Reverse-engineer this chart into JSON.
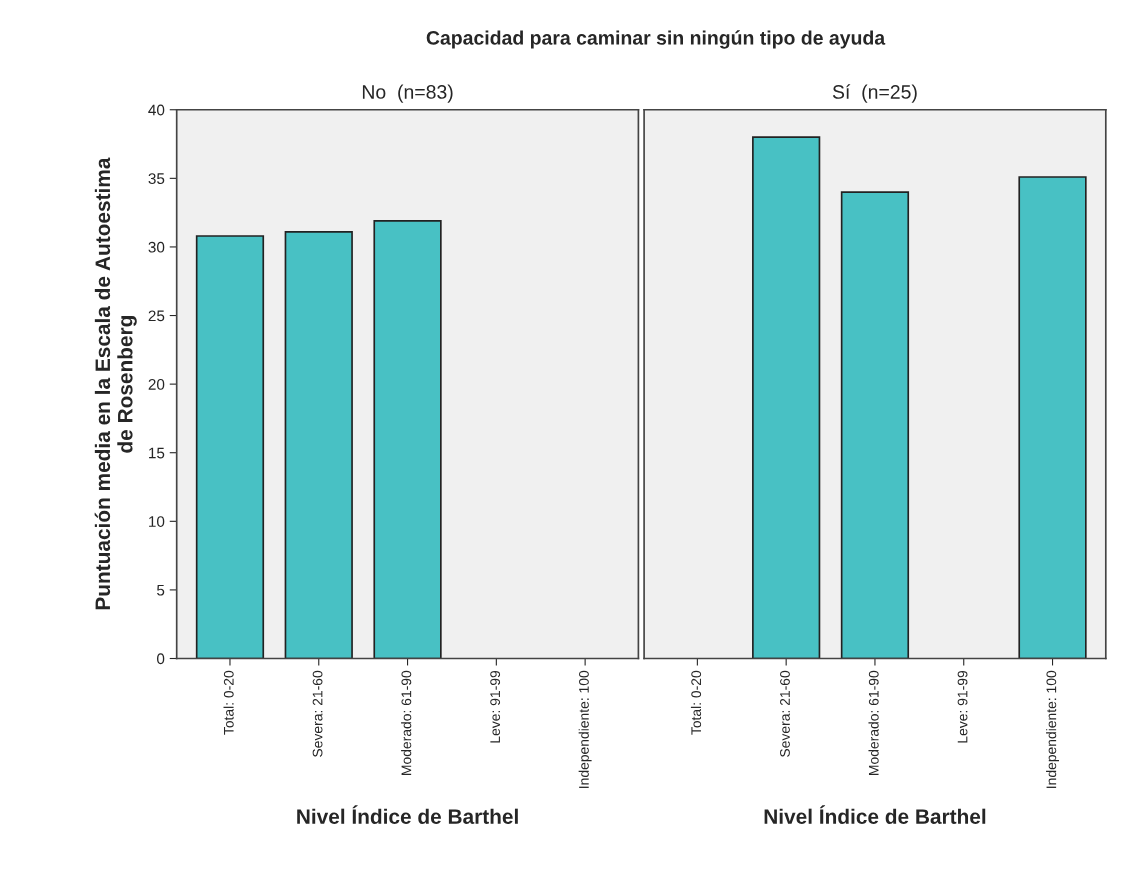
{
  "chart_data": [
    {
      "type": "bar",
      "title": "No  (n=83)",
      "annotations": [
        "Capacidad para caminar sin ningún tipo de ayuda"
      ],
      "xlabel": "Nivel Índice de Barthel",
      "ylabel": "Puntuación media en la Escala de Autoestima\nde Rosenberg",
      "categories": [
        "Total: 0-20",
        "Severa: 21-60",
        "Moderado: 61-90",
        "Leve: 91-99",
        "Independiente: 100"
      ],
      "values": [
        30.8,
        31.1,
        31.9,
        null,
        null
      ],
      "color": "#48c1c4",
      "ylim": [
        0,
        40
      ],
      "yticks": [
        0,
        5,
        10,
        15,
        20,
        25,
        30,
        35,
        40
      ],
      "grid": false,
      "legend": false
    },
    {
      "type": "bar",
      "title": "Sí  (n=25)",
      "xlabel": "Nivel Índice de Barthel",
      "categories": [
        "Total: 0-20",
        "Severa: 21-60",
        "Moderado: 61-90",
        "Leve: 91-99",
        "Independiente: 100"
      ],
      "values": [
        null,
        38.0,
        34.0,
        null,
        35.1
      ],
      "color": "#48c1c4",
      "ylim": [
        0,
        40
      ],
      "yticks": [
        0,
        5,
        10,
        15,
        20,
        25,
        30,
        35,
        40
      ],
      "tick_labels": "x",
      "grid": false,
      "legend": false
    }
  ]
}
